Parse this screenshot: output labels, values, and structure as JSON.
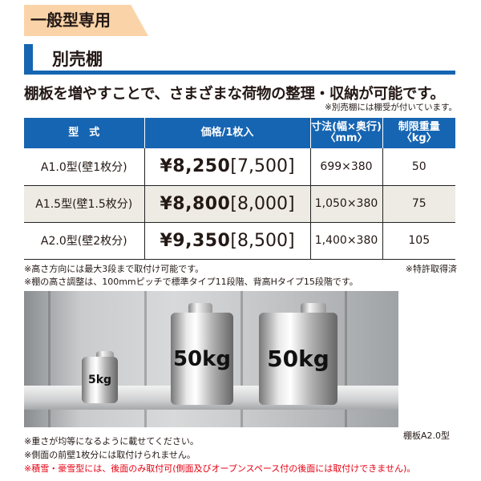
{
  "tag": "一般型専用",
  "title": "別売棚",
  "lead": "棚板を増やすことで、さまざまな荷物の整理・収納が可能です。",
  "note_bracket": "※別売棚には棚受が付いています。",
  "table": {
    "headers": [
      "型　式",
      "価格/1枚入",
      "寸法(幅×奥行)〈mm〉",
      "制限重量〈kg〉"
    ],
    "rows": [
      {
        "model": "A1.0型(壁1枚分)",
        "price": "¥8,250",
        "base": "[7,500]",
        "size": "699×380",
        "weight": "50"
      },
      {
        "model": "A1.5型(壁1.5枚分)",
        "price": "¥8,800",
        "base": "[8,000]",
        "size": "1,050×380",
        "weight": "75"
      },
      {
        "model": "A2.0型(壁2枚分)",
        "price": "¥9,350",
        "base": "[8,500]",
        "size": "1,400×380",
        "weight": "105"
      }
    ]
  },
  "notes_mid": [
    "※高さ方向には最大3段まで取付け可能です。",
    "※棚の高さ調整は、100mmピッチで標準タイプ11段階、背高Hタイプ15段階です。"
  ],
  "patent": "※特許取得済",
  "photo": {
    "weights": [
      "5kg",
      "50kg",
      "50kg"
    ],
    "caption": "棚板A2.0型"
  },
  "notes_bottom": [
    "※重さが均等になるように載せてください。",
    "※側面の前壁1枚分には取付けられません。"
  ],
  "note_red": "※積雪・豪雪型には、後面のみ取付可(側面及びオープンスペース付の後面には取付けできません)。",
  "colors": {
    "blue": "#1665b2",
    "tag": "#fad4a8",
    "red": "#e60012",
    "alt_row": "#eeebe4"
  }
}
